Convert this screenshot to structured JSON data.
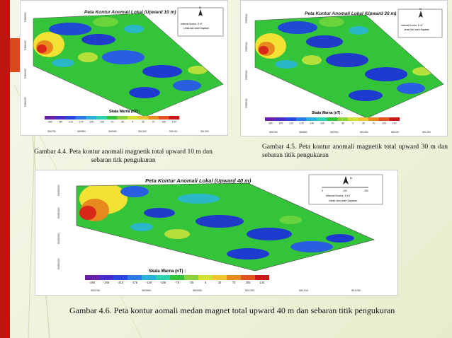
{
  "figures": [
    {
      "title": "Peta Kontur Anomali Lokal (Upward 10 m)",
      "legend_interval": "Interval Kontur: 5 nT",
      "legend_points": "Letak dan arah Sayatan",
      "scale_title": "Skala Warna (nT) :",
      "scale_ticks": [
        "-280",
        "-245",
        "-210",
        "-175",
        "-140",
        "-105",
        "-70",
        "-35",
        "0",
        "35",
        "70",
        "105",
        "140"
      ],
      "x_ticks": [
        "580750",
        "580850",
        "580950",
        "581050",
        "581150",
        "581250"
      ],
      "y_ticks": [
        "9385200",
        "9385300",
        "9385400",
        "9385500"
      ],
      "north": "N",
      "caption": "Gambar 4.4. Peta kontur anomali magnetik total upward 10 m dan sebaran titk pengukuran"
    },
    {
      "title": "Peta Kontur Anomali Lokal (Upward 30 m)",
      "legend_interval": "Interval Kontur: 5 nT",
      "legend_points": "Letak dan arah Sayatan",
      "scale_title": "Skala Warna (nT) :",
      "scale_ticks": [
        "-280",
        "-245",
        "-210",
        "-175",
        "-140",
        "-105",
        "-70",
        "-35",
        "0",
        "35",
        "70",
        "105",
        "140"
      ],
      "x_ticks": [
        "580750",
        "580850",
        "580950",
        "581050",
        "581150",
        "581250"
      ],
      "y_ticks": [
        "9385200",
        "9385300",
        "9385400",
        "9385500"
      ],
      "north": "N",
      "caption": "Gambar 4.5. Peta kontur anomali magnetik total upward 30 m dan sebaran titik pengukuran"
    },
    {
      "title": "Peta Kontur Anomali Lokal (Upward 40 m)",
      "legend_interval": "Interval Kontur: 5 nT",
      "legend_points": "Letak dan arah Sayatan",
      "legend_scale": [
        "0",
        "100",
        "200"
      ],
      "scale_title": "Skala Warna (nT) :",
      "scale_ticks": [
        "-280",
        "-245",
        "-210",
        "-175",
        "-140",
        "-105",
        "-70",
        "-35",
        "0",
        "35",
        "70",
        "105",
        "140"
      ],
      "x_ticks": [
        "580750",
        "580850",
        "580950",
        "581050",
        "581150",
        "581250"
      ],
      "y_ticks": [
        "9385200",
        "9385300",
        "9385400",
        "9385500"
      ],
      "north": "N",
      "caption": "Gambar 4.6. Peta kontur aomali medan magnet total upward 40 m dan sebaran titik pengukuran"
    }
  ],
  "colors": {
    "red_bar": "#c0140f",
    "accent": "#d84a1c",
    "map_green": "#2ec83a",
    "map_blue": "#1e3bd0",
    "map_red": "#e0331c"
  }
}
